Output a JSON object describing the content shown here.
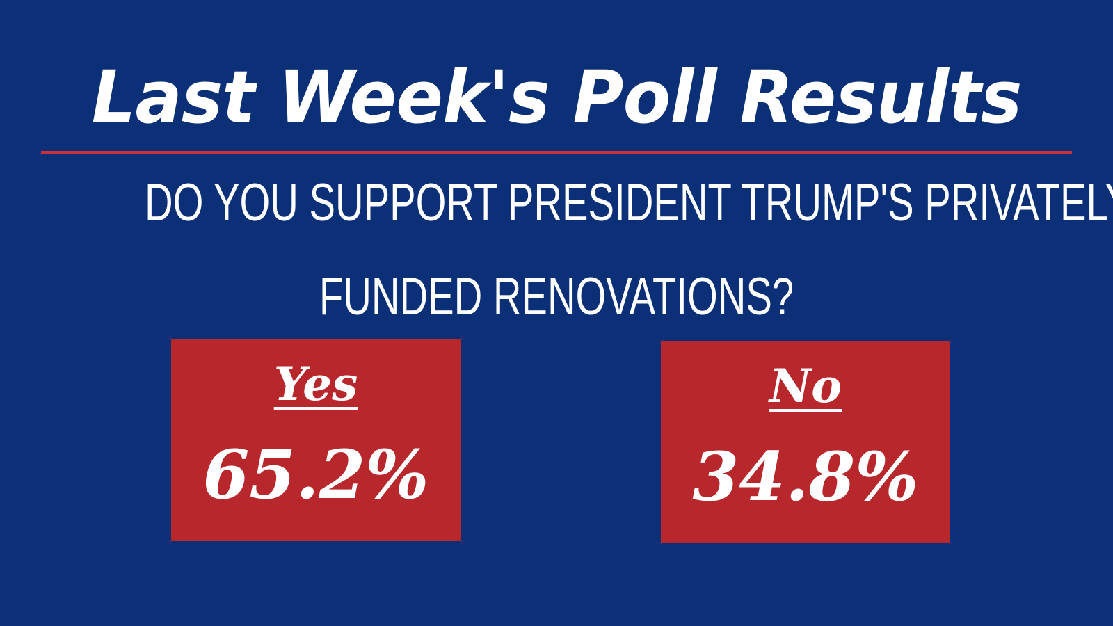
{
  "title": "Last Week's Poll Results",
  "question": {
    "line1": "DO YOU SUPPORT PRESIDENT TRUMP'S PRIVATELY",
    "line2": "FUNDED RENOVATIONS?"
  },
  "options": [
    {
      "label": "Yes",
      "value": "65.2%"
    },
    {
      "label": "No",
      "value": "34.8%"
    }
  ],
  "colors": {
    "background": "#0c3078",
    "accent_red": "#b8272c",
    "divider": "#c8313a",
    "text": "#ffffff"
  }
}
